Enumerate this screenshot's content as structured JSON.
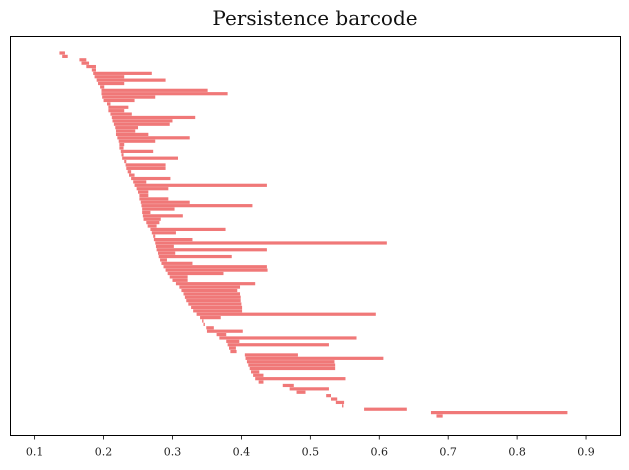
{
  "chart_data": {
    "type": "bar",
    "title": "Persistence barcode",
    "xlabel": "",
    "ylabel": "",
    "xlim": [
      0.065,
      0.95
    ],
    "xticks": [
      0.1,
      0.2,
      0.3,
      0.4,
      0.5,
      0.6,
      0.7,
      0.8,
      0.9
    ],
    "xtick_labels": [
      "0.1",
      "0.2",
      "0.3",
      "0.4",
      "0.5",
      "0.6",
      "0.7",
      "0.8",
      "0.9"
    ],
    "grid": false,
    "orientation": "horizontal",
    "bar_color": "#f07878",
    "intervals": [
      [
        0.136,
        0.144
      ],
      [
        0.14,
        0.148
      ],
      [
        0.165,
        0.175
      ],
      [
        0.168,
        0.179
      ],
      [
        0.175,
        0.189
      ],
      [
        0.183,
        0.189
      ],
      [
        0.185,
        0.27
      ],
      [
        0.187,
        0.23
      ],
      [
        0.19,
        0.29
      ],
      [
        0.192,
        0.23
      ],
      [
        0.195,
        0.201
      ],
      [
        0.197,
        0.351
      ],
      [
        0.197,
        0.38
      ],
      [
        0.198,
        0.275
      ],
      [
        0.2,
        0.245
      ],
      [
        0.205,
        0.21
      ],
      [
        0.207,
        0.236
      ],
      [
        0.207,
        0.23
      ],
      [
        0.21,
        0.241
      ],
      [
        0.212,
        0.333
      ],
      [
        0.213,
        0.3
      ],
      [
        0.215,
        0.296
      ],
      [
        0.217,
        0.25
      ],
      [
        0.218,
        0.246
      ],
      [
        0.218,
        0.265
      ],
      [
        0.22,
        0.325
      ],
      [
        0.222,
        0.275
      ],
      [
        0.223,
        0.23
      ],
      [
        0.223,
        0.229
      ],
      [
        0.225,
        0.272
      ],
      [
        0.226,
        0.229
      ],
      [
        0.227,
        0.308
      ],
      [
        0.23,
        0.233
      ],
      [
        0.232,
        0.29
      ],
      [
        0.233,
        0.29
      ],
      [
        0.235,
        0.24
      ],
      [
        0.237,
        0.245
      ],
      [
        0.24,
        0.297
      ],
      [
        0.243,
        0.262
      ],
      [
        0.245,
        0.437
      ],
      [
        0.248,
        0.294
      ],
      [
        0.25,
        0.265
      ],
      [
        0.252,
        0.265
      ],
      [
        0.252,
        0.294
      ],
      [
        0.254,
        0.325
      ],
      [
        0.255,
        0.416
      ],
      [
        0.256,
        0.303
      ],
      [
        0.256,
        0.268
      ],
      [
        0.257,
        0.315
      ],
      [
        0.258,
        0.283
      ],
      [
        0.262,
        0.281
      ],
      [
        0.264,
        0.277
      ],
      [
        0.268,
        0.377
      ],
      [
        0.27,
        0.305
      ],
      [
        0.272,
        0.275
      ],
      [
        0.273,
        0.329
      ],
      [
        0.275,
        0.611
      ],
      [
        0.276,
        0.302
      ],
      [
        0.277,
        0.437
      ],
      [
        0.279,
        0.304
      ],
      [
        0.28,
        0.386
      ],
      [
        0.282,
        0.292
      ],
      [
        0.284,
        0.329
      ],
      [
        0.287,
        0.437
      ],
      [
        0.29,
        0.438
      ],
      [
        0.293,
        0.374
      ],
      [
        0.296,
        0.322
      ],
      [
        0.3,
        0.322
      ],
      [
        0.305,
        0.42
      ],
      [
        0.31,
        0.398
      ],
      [
        0.313,
        0.394
      ],
      [
        0.316,
        0.398
      ],
      [
        0.318,
        0.399
      ],
      [
        0.32,
        0.399
      ],
      [
        0.323,
        0.4
      ],
      [
        0.327,
        0.401
      ],
      [
        0.33,
        0.401
      ],
      [
        0.335,
        0.595
      ],
      [
        0.34,
        0.37
      ],
      [
        0.343,
        0.345
      ],
      [
        0.345,
        0.347
      ],
      [
        0.349,
        0.36
      ],
      [
        0.35,
        0.402
      ],
      [
        0.364,
        0.378
      ],
      [
        0.368,
        0.567
      ],
      [
        0.378,
        0.397
      ],
      [
        0.38,
        0.527
      ],
      [
        0.382,
        0.392
      ],
      [
        0.384,
        0.393
      ],
      [
        0.405,
        0.482
      ],
      [
        0.406,
        0.606
      ],
      [
        0.408,
        0.535
      ],
      [
        0.41,
        0.536
      ],
      [
        0.412,
        0.536
      ],
      [
        0.414,
        0.426
      ],
      [
        0.417,
        0.432
      ],
      [
        0.42,
        0.551
      ],
      [
        0.425,
        0.432
      ],
      [
        0.46,
        0.476
      ],
      [
        0.47,
        0.527
      ],
      [
        0.48,
        0.493
      ],
      [
        0.523,
        0.53
      ],
      [
        0.53,
        0.539
      ],
      [
        0.537,
        0.549
      ],
      [
        0.546,
        0.548
      ],
      [
        0.578,
        0.64
      ],
      [
        0.675,
        0.873
      ],
      [
        0.683,
        0.692
      ]
    ]
  }
}
